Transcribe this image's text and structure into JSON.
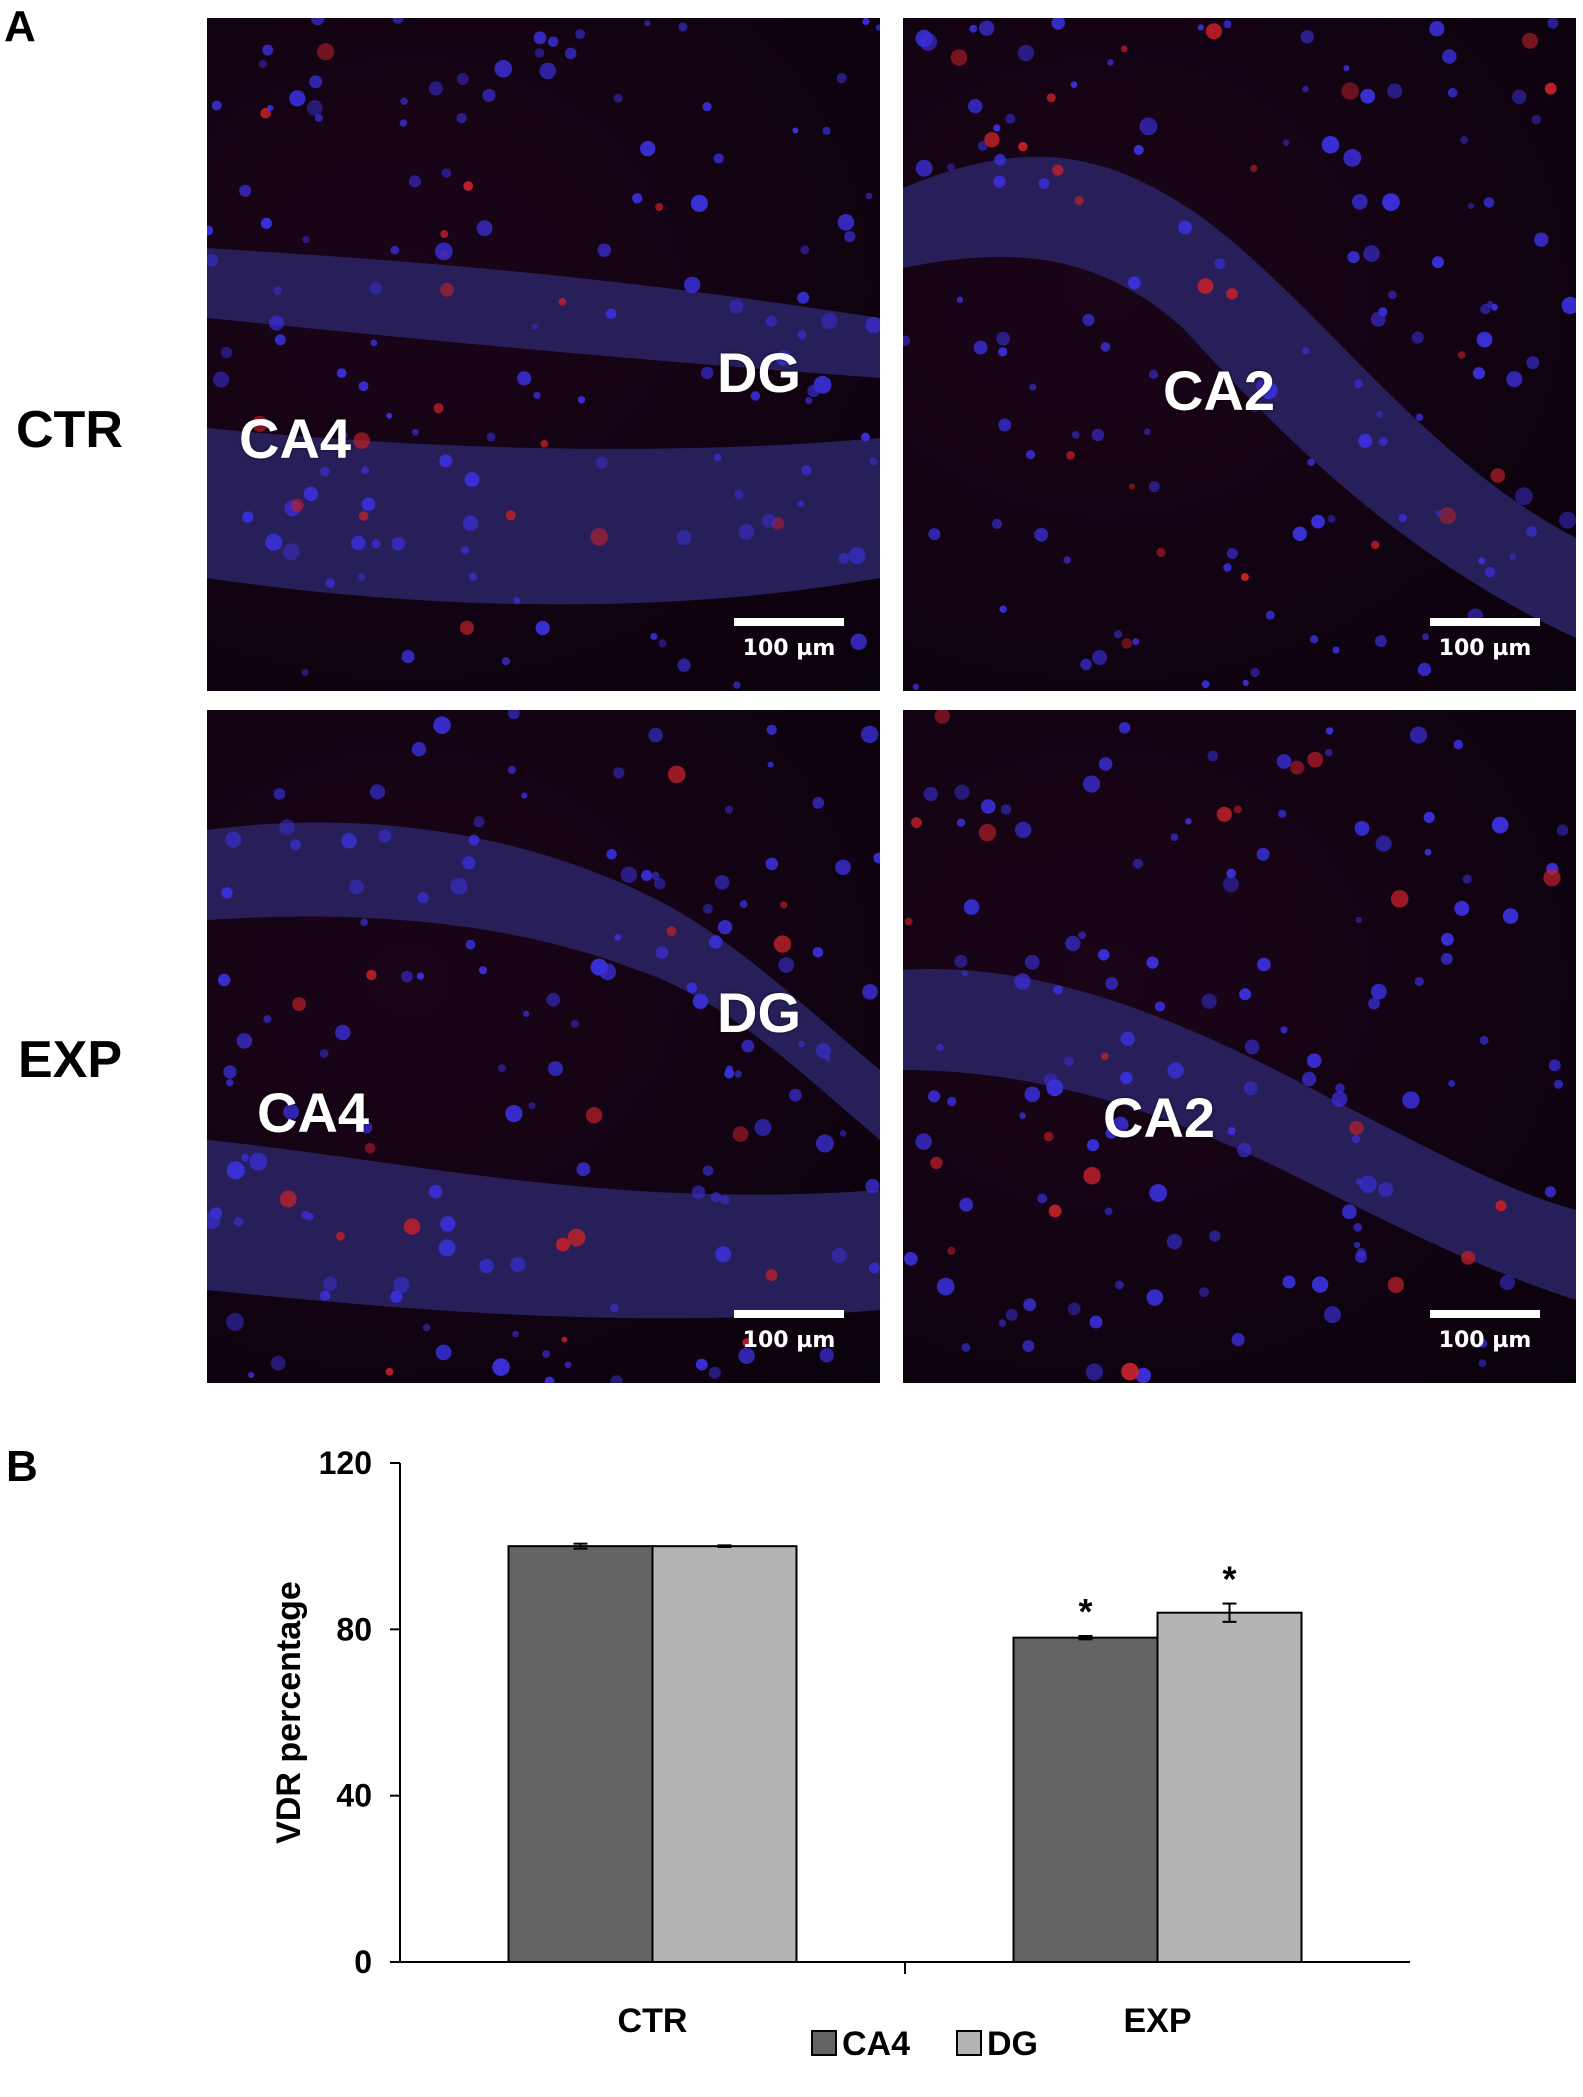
{
  "panel_a": {
    "letter": "A",
    "rows": [
      {
        "label": "CTR",
        "images": [
          {
            "regions": [
              "CA4",
              "DG"
            ],
            "scale": "100 µm"
          },
          {
            "regions": [
              "CA2"
            ],
            "scale": "100 µm"
          }
        ]
      },
      {
        "label": "EXP",
        "images": [
          {
            "regions": [
              "CA4",
              "DG"
            ],
            "scale": "100 µm"
          },
          {
            "regions": [
              "CA2"
            ],
            "scale": "100 µm"
          }
        ]
      }
    ]
  },
  "panel_b": {
    "letter": "B"
  },
  "chart_data": {
    "type": "bar",
    "categories": [
      "CTR",
      "EXP"
    ],
    "series": [
      {
        "name": "CA4",
        "values": [
          100,
          78
        ],
        "errors": [
          0.6,
          0.4
        ],
        "color": "#646464"
      },
      {
        "name": "DG",
        "values": [
          100,
          84
        ],
        "errors": [
          0.2,
          2.2
        ],
        "color": "#b4b4b4"
      }
    ],
    "significance": [
      [
        "",
        ""
      ],
      [
        "*",
        "*"
      ]
    ],
    "ylabel": "VDR percentage",
    "xlabel": "",
    "ylim": [
      0,
      120
    ],
    "yticks": [
      0,
      40,
      80,
      120
    ],
    "grid": false,
    "legend_position": "bottom-center"
  }
}
